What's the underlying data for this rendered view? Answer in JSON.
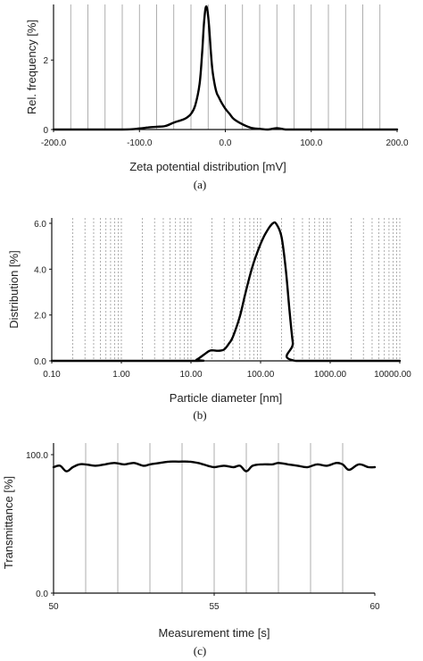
{
  "chart_data": [
    {
      "type": "line",
      "panel": "a",
      "caption": "(a)",
      "xlabel": "Zeta potential distribution [mV]",
      "ylabel": "Rel. frequency [%]",
      "xlim": [
        -200,
        200
      ],
      "ylim": [
        0,
        3.6
      ],
      "xticks": [
        -200,
        -100,
        0,
        100,
        200
      ],
      "xtick_labels": [
        "-200.0",
        "-100.0",
        "0.0",
        "100.0",
        "200.0"
      ],
      "yticks": [
        0,
        2
      ],
      "ytick_labels": [
        "0",
        "2"
      ],
      "grid": "vertical lines every 20 mV",
      "series": [
        {
          "x": [
            -200,
            -120,
            -100,
            -90,
            -80,
            -70,
            -60,
            -50,
            -45,
            -40,
            -35,
            -30,
            -27,
            -25,
            -23,
            -21,
            -19,
            -17,
            -15,
            -12,
            -10,
            -8,
            -5,
            0,
            5,
            10,
            20,
            30,
            40,
            50,
            60,
            70,
            80,
            100,
            150,
            200
          ],
          "y": [
            0,
            0,
            0.03,
            0.06,
            0.08,
            0.1,
            0.2,
            0.28,
            0.34,
            0.45,
            0.7,
            1.3,
            2.2,
            3.0,
            3.5,
            3.45,
            3.0,
            2.3,
            1.7,
            1.25,
            1.05,
            0.95,
            0.8,
            0.6,
            0.45,
            0.3,
            0.15,
            0.05,
            0.02,
            0,
            0.04,
            0,
            0,
            0,
            0,
            0
          ]
        }
      ]
    },
    {
      "type": "line",
      "panel": "b",
      "caption": "(b)",
      "xlabel": "Particle diameter [nm]",
      "ylabel": "Distribution [%]",
      "xscale": "log",
      "xlim": [
        0.1,
        10000
      ],
      "ylim": [
        0,
        6
      ],
      "xticks": [
        0.1,
        1,
        10,
        100,
        1000,
        10000
      ],
      "xtick_labels": [
        "0.10",
        "1.00",
        "10.00",
        "100.00",
        "1000.00",
        "10000.00"
      ],
      "yticks": [
        0,
        2,
        4,
        6
      ],
      "ytick_labels": [
        "0.0",
        "2.0",
        "4.0",
        "6.0"
      ],
      "grid": "dotted log-scale vertical lines",
      "series": [
        {
          "x": [
            0.1,
            10,
            12,
            15,
            18,
            20,
            25,
            30,
            35,
            40,
            50,
            60,
            70,
            80,
            100,
            120,
            150,
            170,
            200,
            230,
            260,
            290,
            320,
            10000
          ],
          "y": [
            0,
            0,
            0.05,
            0.25,
            0.42,
            0.46,
            0.44,
            0.5,
            0.75,
            1.05,
            1.9,
            2.9,
            3.7,
            4.3,
            5.1,
            5.6,
            6.0,
            5.95,
            5.4,
            4.0,
            2.2,
            0.8,
            0,
            0
          ]
        }
      ]
    },
    {
      "type": "line",
      "panel": "c",
      "caption": "(c)",
      "xlabel": "Measurement time [s]",
      "ylabel": "Transmittance [%]",
      "xlim": [
        50,
        60
      ],
      "ylim": [
        0,
        100
      ],
      "xticks": [
        50,
        55,
        60
      ],
      "xtick_labels": [
        "50",
        "55",
        "60"
      ],
      "yticks": [
        0,
        100
      ],
      "ytick_labels": [
        "0.0",
        "100.0"
      ],
      "grid": "vertical lines every 1 s",
      "series": [
        {
          "x": [
            50,
            50.2,
            50.4,
            50.6,
            50.8,
            51,
            51.3,
            51.6,
            51.9,
            52.2,
            52.5,
            52.8,
            53,
            53.3,
            53.6,
            53.9,
            54.2,
            54.5,
            54.8,
            55,
            55.3,
            55.6,
            55.8,
            56,
            56.2,
            56.5,
            56.8,
            57,
            57.3,
            57.6,
            57.9,
            58.2,
            58.5,
            58.8,
            59,
            59.2,
            59.5,
            59.8,
            60
          ],
          "y": [
            91,
            92,
            88,
            91,
            93,
            93,
            92,
            93,
            94,
            93,
            94,
            92,
            93,
            94,
            95,
            95,
            95,
            94,
            92,
            91,
            92,
            91,
            92,
            88,
            92,
            93,
            93,
            94,
            93,
            92,
            91,
            93,
            92,
            94,
            93,
            89,
            93,
            91,
            91
          ]
        }
      ]
    }
  ]
}
